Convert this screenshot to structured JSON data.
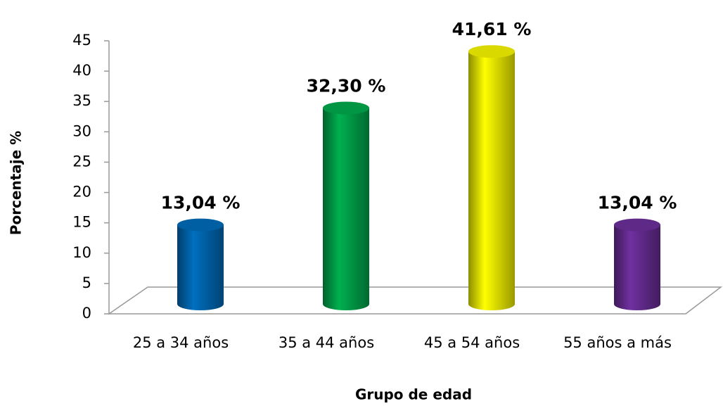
{
  "chart_data": {
    "type": "bar3d",
    "categories": [
      "25 a 34 años",
      "35 a 44 años",
      "45 a 54 años",
      "55 años a más"
    ],
    "values": [
      13.04,
      32.3,
      41.61,
      13.04
    ],
    "value_labels": [
      "13,04 %",
      "32,30 %",
      "41,61 %",
      "13,04 %"
    ],
    "colors": [
      "#0070c0",
      "#00b050",
      "#ffff00",
      "#7030a0"
    ],
    "xlabel": "Grupo de edad",
    "ylabel": "Porcentaje %",
    "ylim": [
      0,
      45
    ],
    "yticks": [
      0,
      5,
      10,
      15,
      20,
      25,
      30,
      35,
      40,
      45
    ]
  }
}
